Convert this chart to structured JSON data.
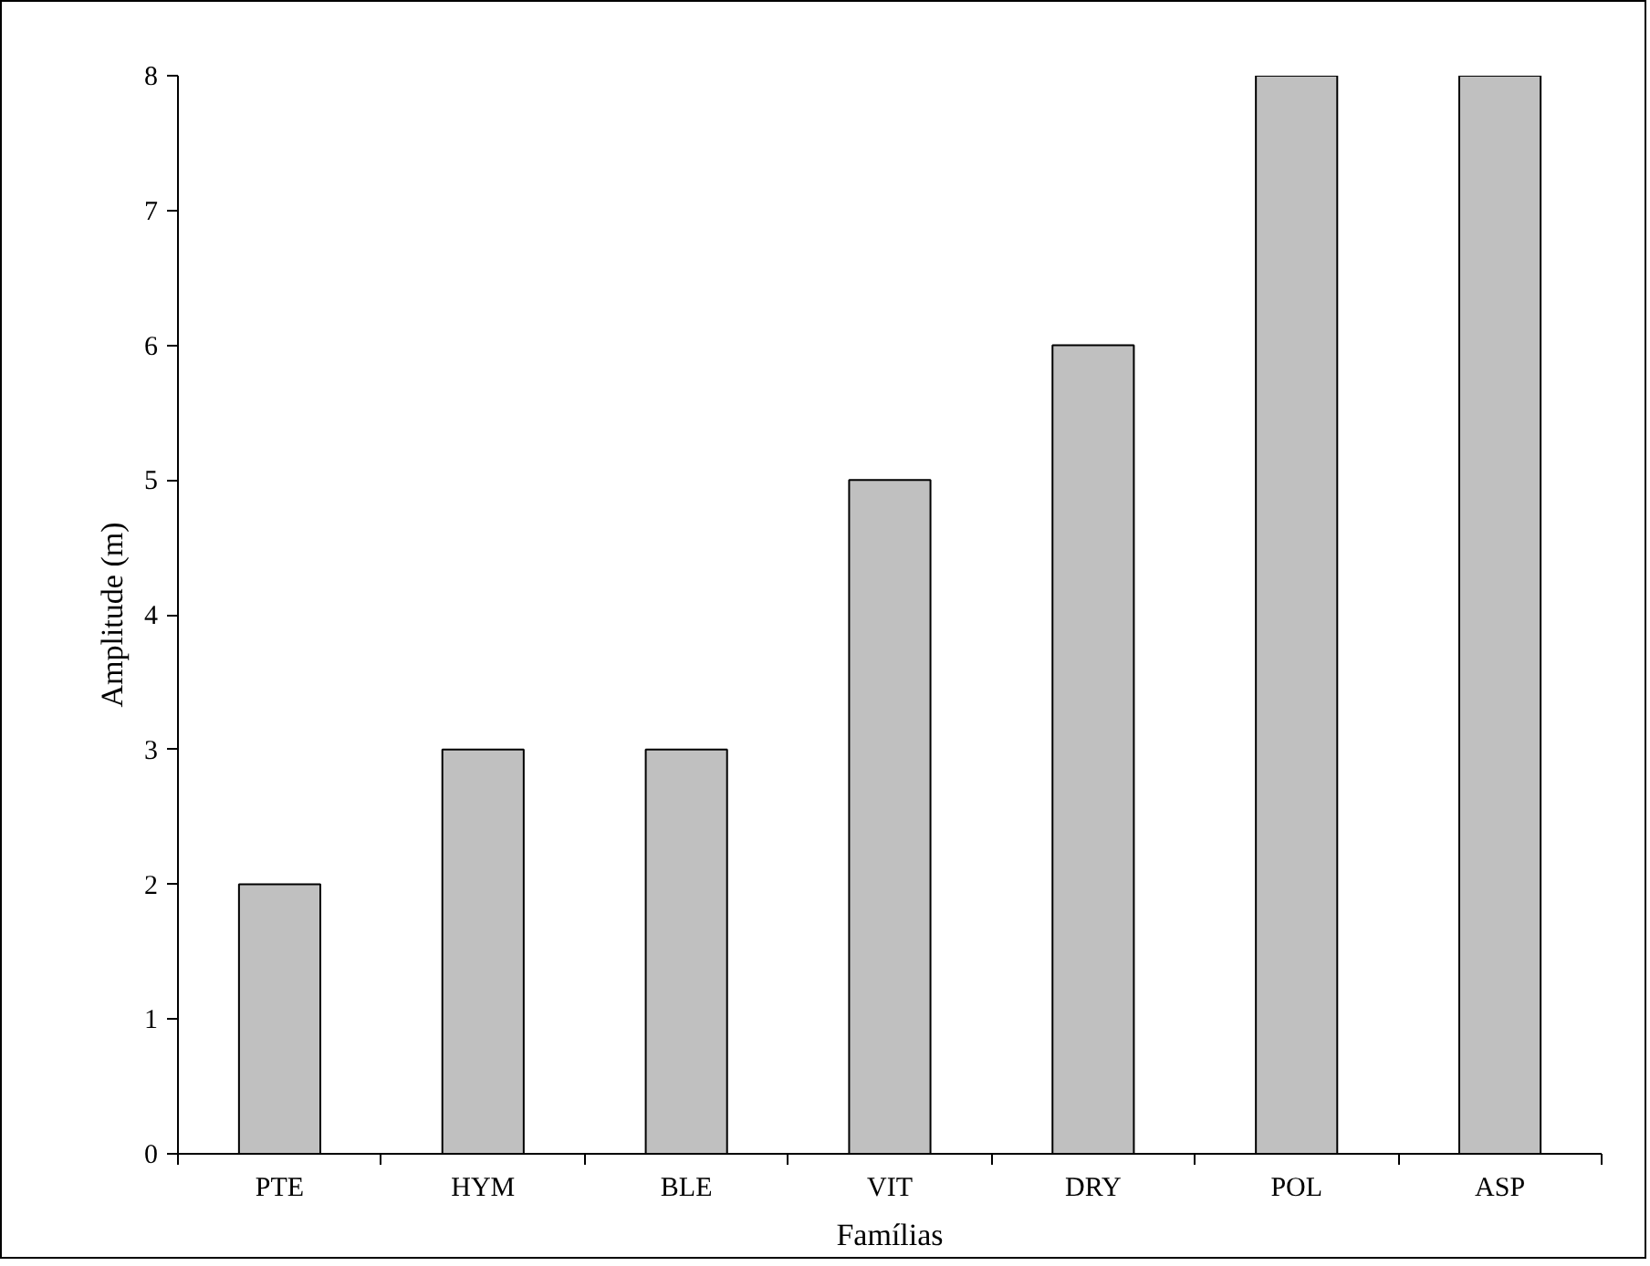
{
  "chart_data": {
    "type": "bar",
    "xlabel": "Famílias",
    "ylabel": "Amplitude (m)",
    "categories": [
      "PTE",
      "HYM",
      "BLE",
      "VIT",
      "DRY",
      "POL",
      "ASP"
    ],
    "values": [
      2,
      3,
      3,
      5,
      6,
      8,
      8
    ],
    "color": "#c0c0c0",
    "ylim": [
      0,
      8
    ],
    "yticks": [
      0,
      1,
      2,
      3,
      4,
      5,
      6,
      7,
      8
    ],
    "grid": false
  }
}
